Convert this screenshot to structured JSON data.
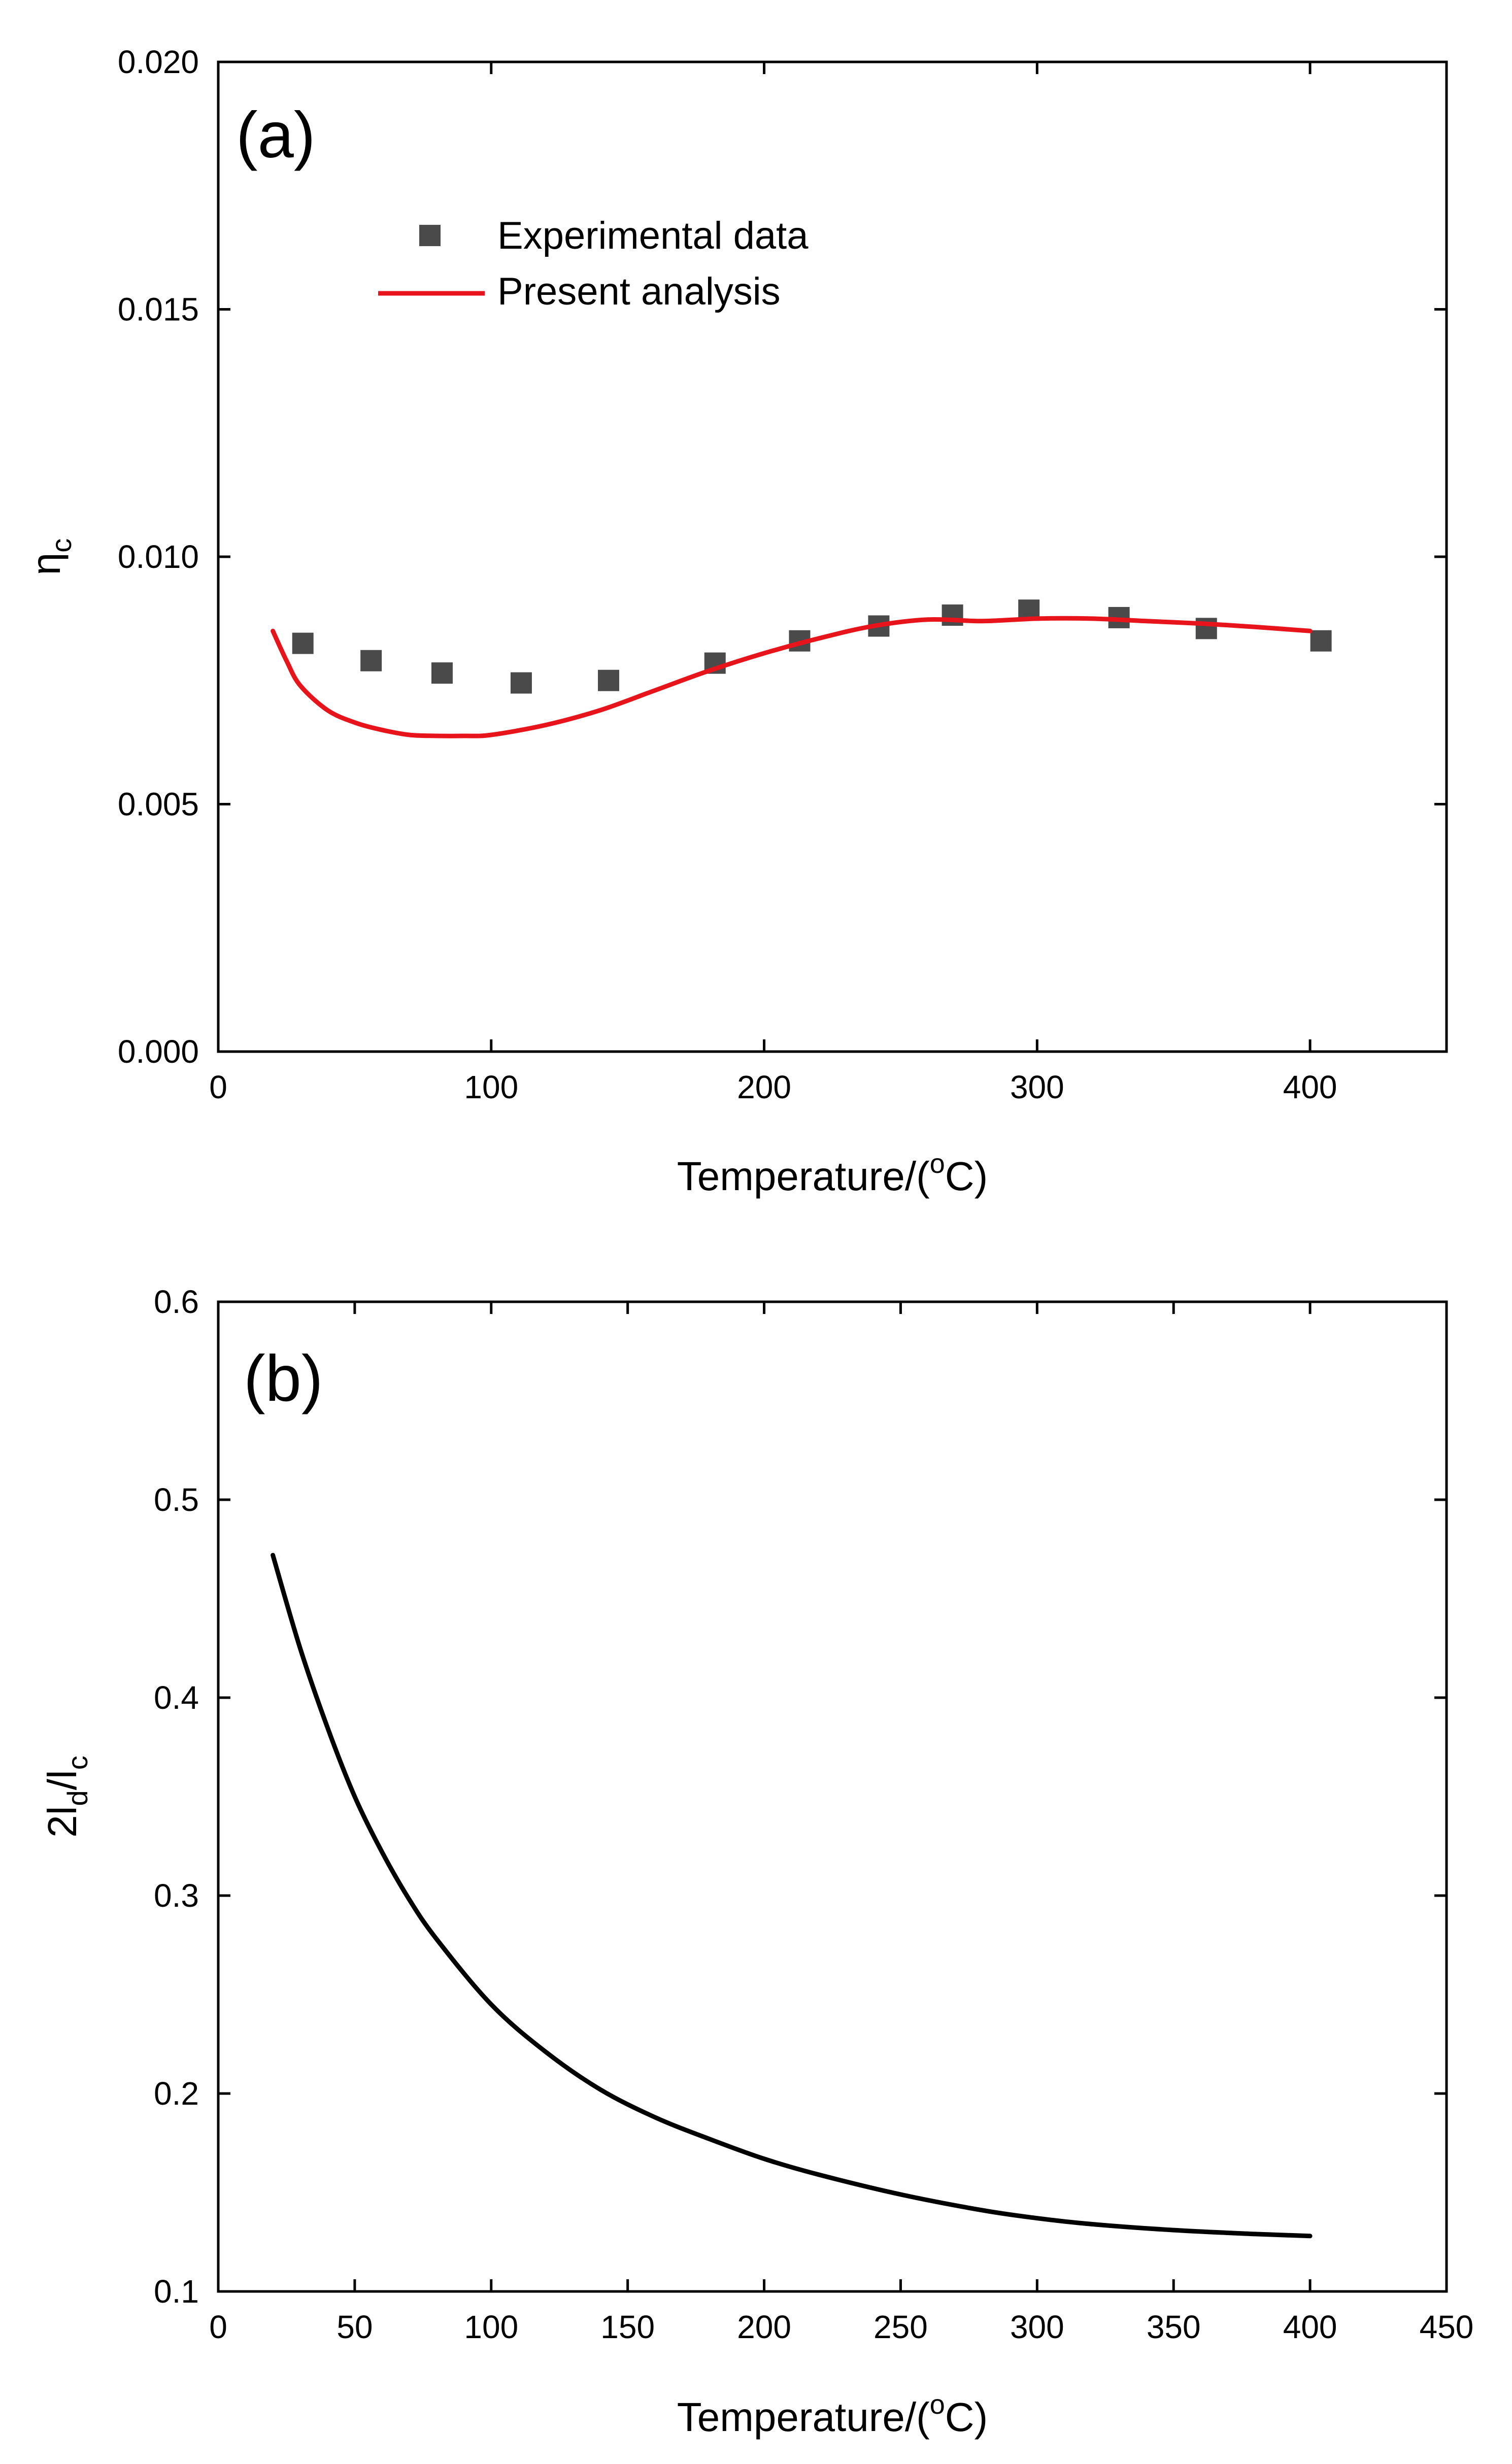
{
  "chart_data": [
    {
      "type": "scatter",
      "panel_label": "(a)",
      "xlabel": "Temperature/(oC)",
      "xlabel_parts": {
        "main": "Temperature/(",
        "sup": "o",
        "end": "C)"
      },
      "ylabel": "ηc",
      "ylabel_parts": {
        "main": "η",
        "sub": "c"
      },
      "xlim": [
        0,
        450
      ],
      "ylim": [
        0.0,
        0.02
      ],
      "xticks": [
        0,
        100,
        200,
        300,
        400
      ],
      "xtick_labels": [
        "0",
        "100",
        "200",
        "300",
        "400"
      ],
      "yticks": [
        0.0,
        0.005,
        0.01,
        0.015,
        0.02
      ],
      "ytick_labels": [
        "0.000",
        "0.005",
        "0.010",
        "0.015",
        "0.020"
      ],
      "grid": false,
      "legend_position": "top-left",
      "legend": [
        "Experimental data",
        "Present analysis"
      ],
      "series": [
        {
          "name": "Experimental data",
          "kind": "scatter",
          "marker": "square",
          "color": "#4a4a4a",
          "x": [
            31,
            56,
            82,
            111,
            143,
            182,
            213,
            242,
            269,
            297,
            330,
            362,
            404
          ],
          "y": [
            0.00825,
            0.0079,
            0.00765,
            0.00745,
            0.0075,
            0.00785,
            0.0083,
            0.0086,
            0.00882,
            0.00892,
            0.00877,
            0.00855,
            0.0083
          ]
        },
        {
          "name": "Present analysis",
          "kind": "line",
          "color": "#e8141c",
          "x": [
            20,
            25,
            30,
            40,
            50,
            60,
            70,
            80,
            90,
            100,
            120,
            140,
            160,
            180,
            200,
            220,
            240,
            260,
            280,
            300,
            320,
            340,
            360,
            380,
            400
          ],
          "y": [
            0.0085,
            0.0079,
            0.0074,
            0.0069,
            0.00665,
            0.0065,
            0.0064,
            0.00638,
            0.00638,
            0.0064,
            0.0066,
            0.0069,
            0.0073,
            0.0077,
            0.00805,
            0.00835,
            0.0086,
            0.00873,
            0.0087,
            0.00875,
            0.00875,
            0.0087,
            0.00865,
            0.00858,
            0.0085
          ]
        }
      ]
    },
    {
      "type": "line",
      "panel_label": "(b)",
      "xlabel": "Temperature/(oC)",
      "xlabel_parts": {
        "main": "Temperature/(",
        "sup": "o",
        "end": "C)"
      },
      "ylabel": "2ld/lc",
      "ylabel_parts": {
        "a": "2l",
        "sub1": "d",
        "b": "/l",
        "sub2": "c"
      },
      "xlim": [
        0,
        450
      ],
      "ylim": [
        0.1,
        0.6
      ],
      "xticks": [
        0,
        50,
        100,
        150,
        200,
        250,
        300,
        350,
        400,
        450
      ],
      "xtick_labels": [
        "0",
        "50",
        "100",
        "150",
        "200",
        "250",
        "300",
        "350",
        "400",
        "450"
      ],
      "yticks": [
        0.1,
        0.2,
        0.3,
        0.4,
        0.5,
        0.6
      ],
      "ytick_labels": [
        "0.1",
        "0.2",
        "0.3",
        "0.4",
        "0.5",
        "0.6"
      ],
      "grid": false,
      "series": [
        {
          "name": "2ld/lc",
          "kind": "line",
          "color": "#000000",
          "x": [
            20,
            30,
            40,
            50,
            60,
            70,
            80,
            100,
            120,
            140,
            160,
            180,
            200,
            220,
            250,
            280,
            300,
            320,
            350,
            380,
            400
          ],
          "y": [
            0.472,
            0.425,
            0.385,
            0.35,
            0.322,
            0.298,
            0.278,
            0.245,
            0.221,
            0.202,
            0.188,
            0.177,
            0.167,
            0.159,
            0.149,
            0.141,
            0.137,
            0.134,
            0.131,
            0.129,
            0.128
          ]
        }
      ]
    }
  ]
}
